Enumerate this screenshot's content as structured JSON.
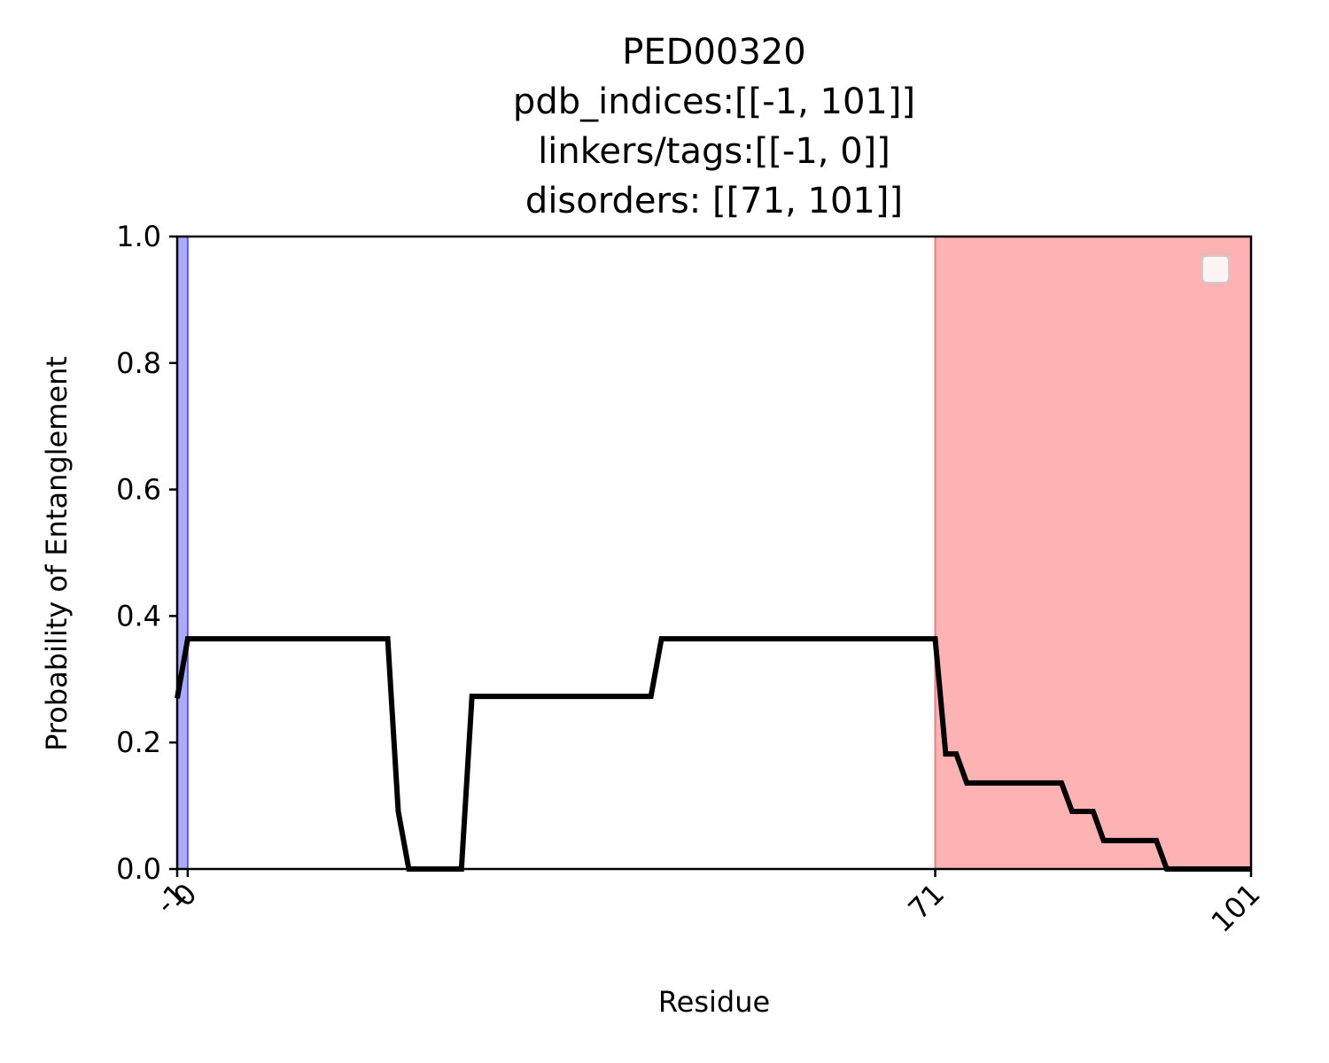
{
  "chart_data": {
    "type": "line",
    "title_lines": [
      "PED00320",
      "pdb_indices:[[-1, 101]]",
      "linkers/tags:[[-1, 0]]",
      "disorders: [[71, 101]]"
    ],
    "xlabel": "Residue",
    "ylabel": "Probability of Entanglement",
    "xlim": [
      -1,
      101
    ],
    "ylim": [
      0.0,
      1.0
    ],
    "x_ticks": [
      -1,
      0,
      71,
      101
    ],
    "x_tick_labels": [
      "-1",
      "0",
      "71",
      "101"
    ],
    "y_ticks": [
      0.0,
      0.2,
      0.4,
      0.6,
      0.8,
      1.0
    ],
    "y_tick_labels": [
      "0.0",
      "0.2",
      "0.4",
      "0.6",
      "0.8",
      "1.0"
    ],
    "legend": {
      "placement": "top-right",
      "entries": []
    },
    "grid": false,
    "shaded_regions": [
      {
        "x_start": -1,
        "x_end": 0,
        "color": "#aaaaff",
        "edge_color": "#5a5af0"
      },
      {
        "x_start": 71,
        "x_end": 101,
        "color": "#fdb3b3",
        "edge_color": "#e58080"
      }
    ],
    "series": [
      {
        "color": "#000000",
        "points": [
          [
            -1,
            0.27
          ],
          [
            0,
            0.364
          ],
          [
            19,
            0.364
          ],
          [
            20,
            0.091
          ],
          [
            21,
            0.0
          ],
          [
            26,
            0.0
          ],
          [
            27,
            0.273
          ],
          [
            44,
            0.273
          ],
          [
            45,
            0.364
          ],
          [
            71,
            0.364
          ],
          [
            72,
            0.182
          ],
          [
            73,
            0.182
          ],
          [
            74,
            0.136
          ],
          [
            83,
            0.136
          ],
          [
            84,
            0.091
          ],
          [
            86,
            0.091
          ],
          [
            87,
            0.045
          ],
          [
            92,
            0.045
          ],
          [
            93,
            0.0
          ],
          [
            101,
            0.0
          ]
        ]
      }
    ]
  }
}
